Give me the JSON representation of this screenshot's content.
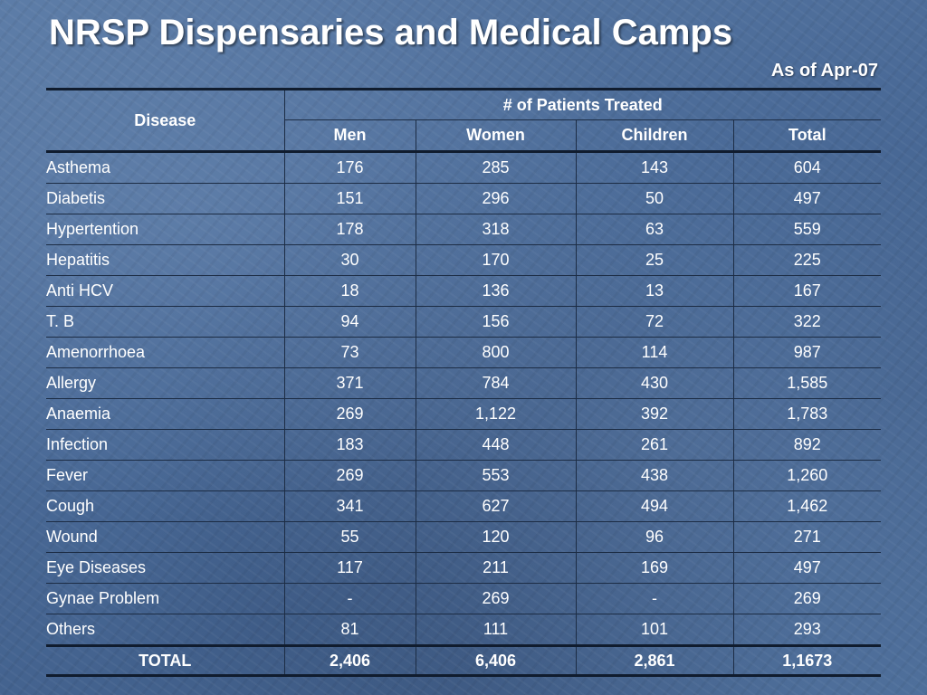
{
  "title": "NRSP Dispensaries and Medical Camps",
  "as_of": "As of Apr-07",
  "table": {
    "disease_header": "Disease",
    "group_header": "# of Patients Treated",
    "columns": [
      "Men",
      "Women",
      "Children",
      "Total"
    ],
    "rows": [
      {
        "disease": "Asthema",
        "men": "176",
        "women": "285",
        "children": "143",
        "total": "604"
      },
      {
        "disease": "Diabetis",
        "men": "151",
        "women": "296",
        "children": "50",
        "total": "497"
      },
      {
        "disease": "Hypertention",
        "men": "178",
        "women": "318",
        "children": "63",
        "total": "559"
      },
      {
        "disease": "Hepatitis",
        "men": "30",
        "women": "170",
        "children": "25",
        "total": "225"
      },
      {
        "disease": "Anti HCV",
        "men": "18",
        "women": "136",
        "children": "13",
        "total": "167"
      },
      {
        "disease": "T. B",
        "men": "94",
        "women": "156",
        "children": "72",
        "total": "322"
      },
      {
        "disease": "Amenorrhoea",
        "men": "73",
        "women": "800",
        "children": "114",
        "total": "987"
      },
      {
        "disease": "Allergy",
        "men": "371",
        "women": "784",
        "children": "430",
        "total": "1,585"
      },
      {
        "disease": "Anaemia",
        "men": "269",
        "women": "1,122",
        "children": "392",
        "total": "1,783"
      },
      {
        "disease": "Infection",
        "men": "183",
        "women": "448",
        "children": "261",
        "total": "892"
      },
      {
        "disease": "Fever",
        "men": "269",
        "women": "553",
        "children": "438",
        "total": "1,260"
      },
      {
        "disease": "Cough",
        "men": "341",
        "women": "627",
        "children": "494",
        "total": "1,462"
      },
      {
        "disease": "Wound",
        "men": "55",
        "women": "120",
        "children": "96",
        "total": "271"
      },
      {
        "disease": "Eye Diseases",
        "men": "117",
        "women": "211",
        "children": "169",
        "total": "497"
      },
      {
        "disease": "Gynae Problem",
        "men": "-",
        "women": "269",
        "children": "-",
        "total": "269"
      },
      {
        "disease": "Others",
        "men": "81",
        "women": "111",
        "children": "101",
        "total": "293"
      }
    ],
    "total_row": {
      "disease": "TOTAL",
      "men": "2,406",
      "women": "6,406",
      "children": "2,861",
      "total": "1,1673"
    }
  }
}
